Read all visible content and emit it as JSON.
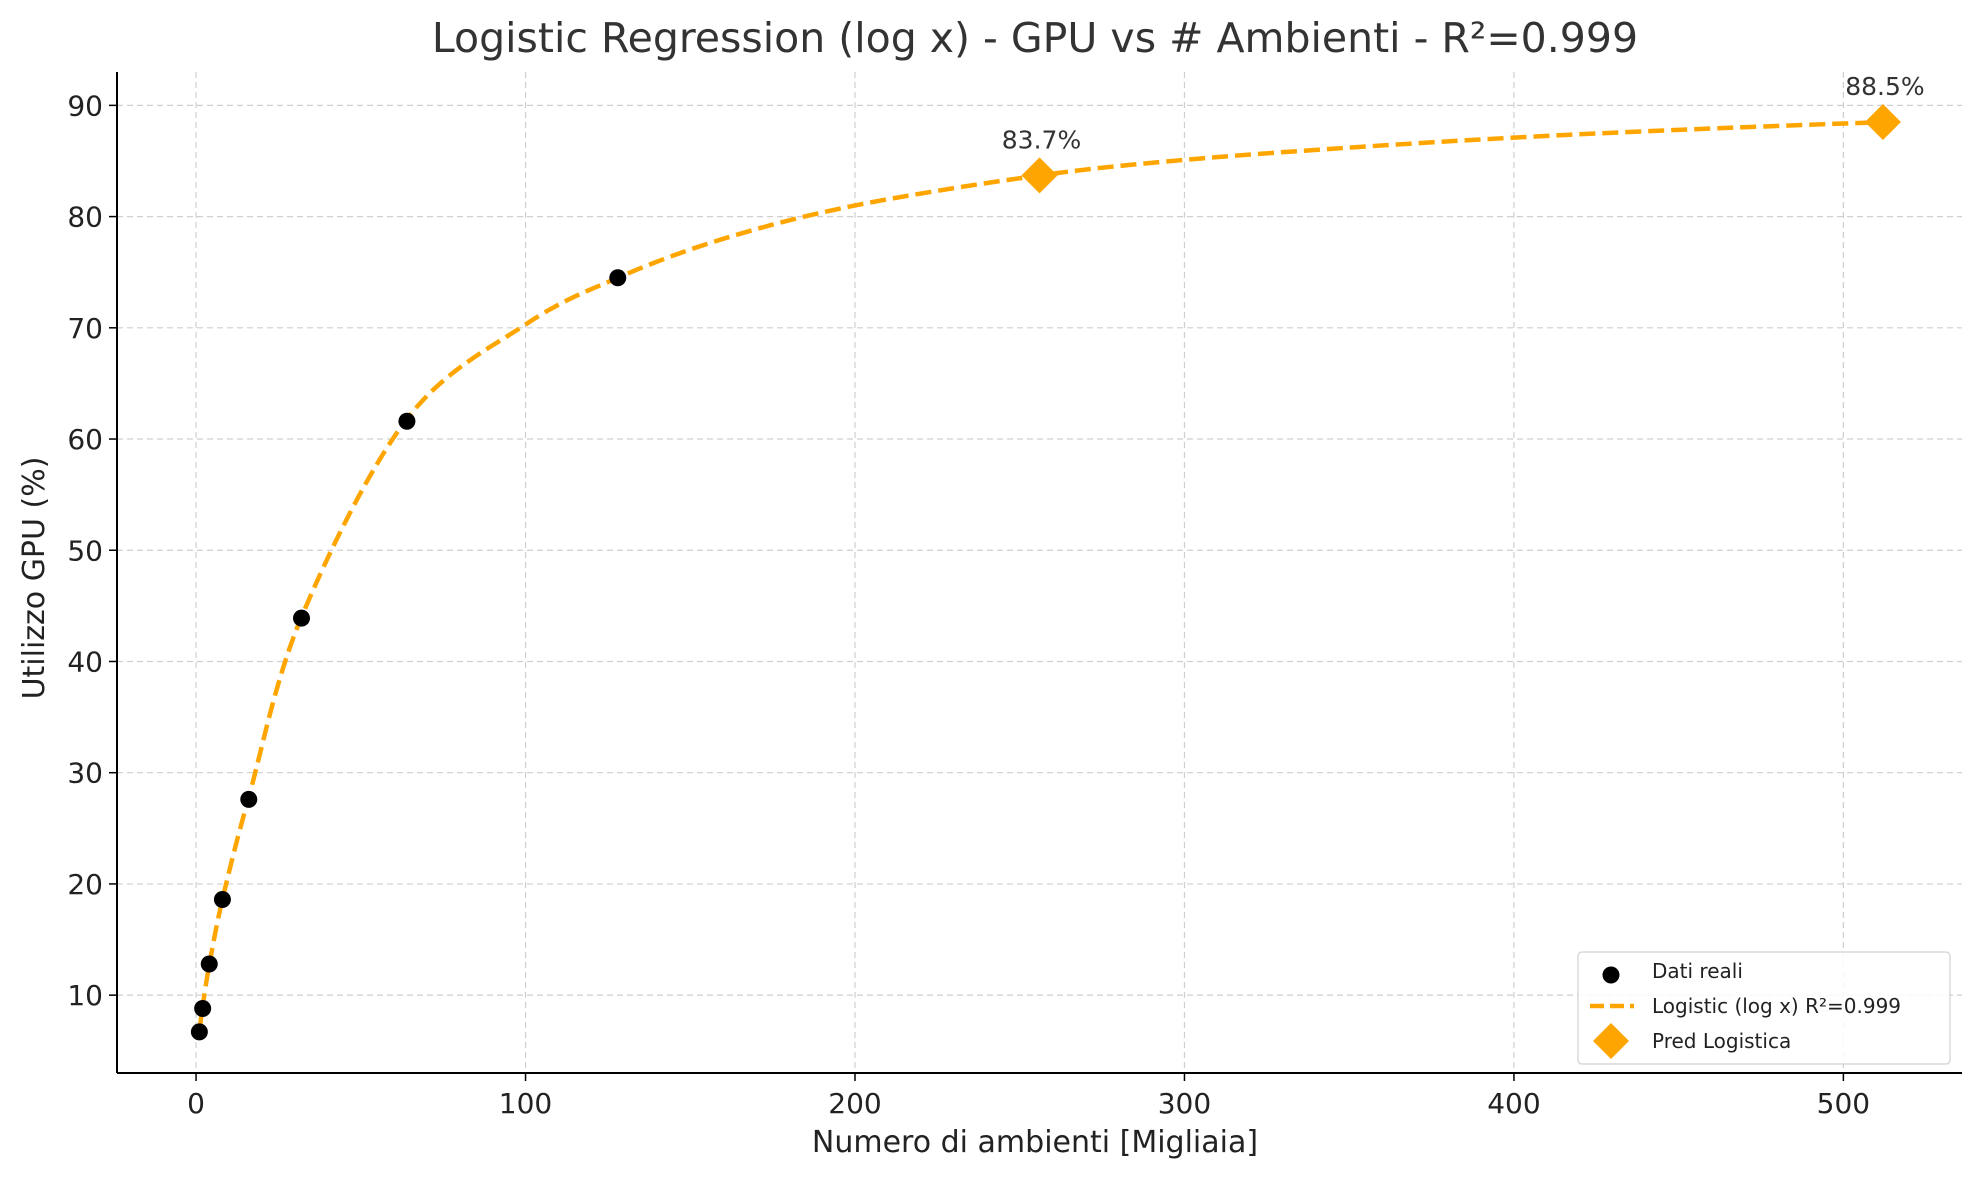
{
  "chart_data": {
    "type": "scatter",
    "title": "Logistic Regression (log x) - GPU vs # Ambienti - R²=0.999",
    "xlabel": "Numero di ambienti [Migliaia]",
    "ylabel": "Utilizzo GPU (%)",
    "xlim": [
      -24,
      536
    ],
    "ylim": [
      3,
      93
    ],
    "xticks": [
      0,
      100,
      200,
      300,
      400,
      500
    ],
    "yticks": [
      10,
      20,
      30,
      40,
      50,
      60,
      70,
      80,
      90
    ],
    "grid": true,
    "legend_position": "bottom-right",
    "colors": {
      "data": "#000000",
      "fit": "#FFA500",
      "pred": "#FFA500"
    },
    "series": [
      {
        "name": "Dati reali",
        "kind": "scatter",
        "x": [
          1,
          2,
          4,
          8,
          16,
          32,
          64,
          128
        ],
        "y": [
          6.7,
          8.8,
          12.8,
          18.6,
          27.6,
          43.9,
          61.6,
          74.5
        ]
      },
      {
        "name": "Logistic (log x) R²=0.999",
        "kind": "line",
        "style": "dashed",
        "x": [
          1,
          2,
          4,
          8,
          16,
          32,
          64,
          100,
          128,
          160,
          200,
          256,
          300,
          350,
          400,
          450,
          512
        ],
        "y": [
          6.7,
          9.0,
          12.7,
          18.6,
          27.8,
          44.0,
          61.8,
          70.3,
          74.5,
          78.0,
          81.0,
          83.7,
          85.1,
          86.2,
          87.1,
          87.8,
          88.5
        ]
      },
      {
        "name": "Pred Logistica",
        "kind": "marker",
        "marker": "diamond",
        "x": [
          256,
          512
        ],
        "y": [
          83.7,
          88.5
        ],
        "labels": [
          "83.7%",
          "88.5%"
        ]
      }
    ]
  }
}
